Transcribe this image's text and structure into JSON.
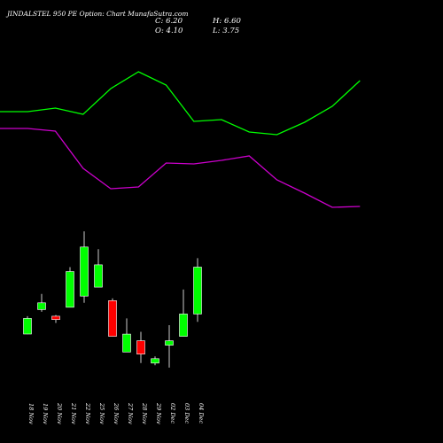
{
  "header": {
    "title": "JINDALSTEL 950 PE Option: Chart MunafaSutra.com",
    "close": "C: 6.20",
    "open": "O: 4.10",
    "high": "H: 6.60",
    "low": "L: 3.75"
  },
  "chart_data": [
    {
      "type": "line",
      "title": "",
      "series": [
        {
          "color": "#00ff00",
          "values": [
            126,
            126,
            122,
            129,
            100,
            81,
            96,
            137,
            135,
            149,
            152,
            138,
            120,
            91
          ]
        },
        {
          "color": "#cc00cc",
          "values": [
            145,
            145,
            148,
            190,
            213,
            211,
            184,
            185,
            181,
            176,
            203,
            218,
            234,
            233
          ]
        }
      ],
      "y_direction": "higher-values-lower-on-screen"
    },
    {
      "type": "candlestick",
      "title": "",
      "up_color": "#00ff00",
      "down_color": "#ff0000",
      "categories": [
        "18 Nov",
        "19 Nov",
        "20 Nov",
        "21 Nov",
        "22 Nov",
        "25 Nov",
        "26 Nov",
        "27 Nov",
        "28 Nov",
        "29 Nov",
        "02 Dec",
        "03 Dec",
        "04 Dec"
      ],
      "candles": [
        {
          "date": "18 Nov",
          "open": 3.2,
          "high": 4.0,
          "low": 3.2,
          "close": 3.9
        },
        {
          "date": "19 Nov",
          "open": 4.3,
          "high": 5.0,
          "low": 4.2,
          "close": 4.6
        },
        {
          "date": "20 Nov",
          "open": 4.0,
          "high": 4.05,
          "low": 3.7,
          "close": 3.85
        },
        {
          "date": "21 Nov",
          "open": 4.4,
          "high": 6.2,
          "low": 4.4,
          "close": 6.0
        },
        {
          "date": "22 Nov",
          "open": 4.9,
          "high": 7.8,
          "low": 4.6,
          "close": 7.1
        },
        {
          "date": "25 Nov",
          "open": 5.3,
          "high": 7.0,
          "low": 5.3,
          "close": 6.3
        },
        {
          "date": "26 Nov",
          "open": 4.7,
          "high": 4.8,
          "low": 3.1,
          "close": 3.1
        },
        {
          "date": "27 Nov",
          "open": 2.4,
          "high": 3.9,
          "low": 2.4,
          "close": 3.2
        },
        {
          "date": "28 Nov",
          "open": 2.9,
          "high": 3.3,
          "low": 1.9,
          "close": 2.3
        },
        {
          "date": "29 Nov",
          "open": 1.9,
          "high": 2.2,
          "low": 1.8,
          "close": 2.1
        },
        {
          "date": "02 Dec",
          "open": 2.7,
          "high": 3.6,
          "low": 1.7,
          "close": 2.9
        },
        {
          "date": "03 Dec",
          "open": 3.1,
          "high": 5.2,
          "low": 3.1,
          "close": 4.1
        },
        {
          "date": "04 Dec",
          "open": 4.1,
          "high": 6.6,
          "low": 3.75,
          "close": 6.2
        }
      ]
    }
  ]
}
